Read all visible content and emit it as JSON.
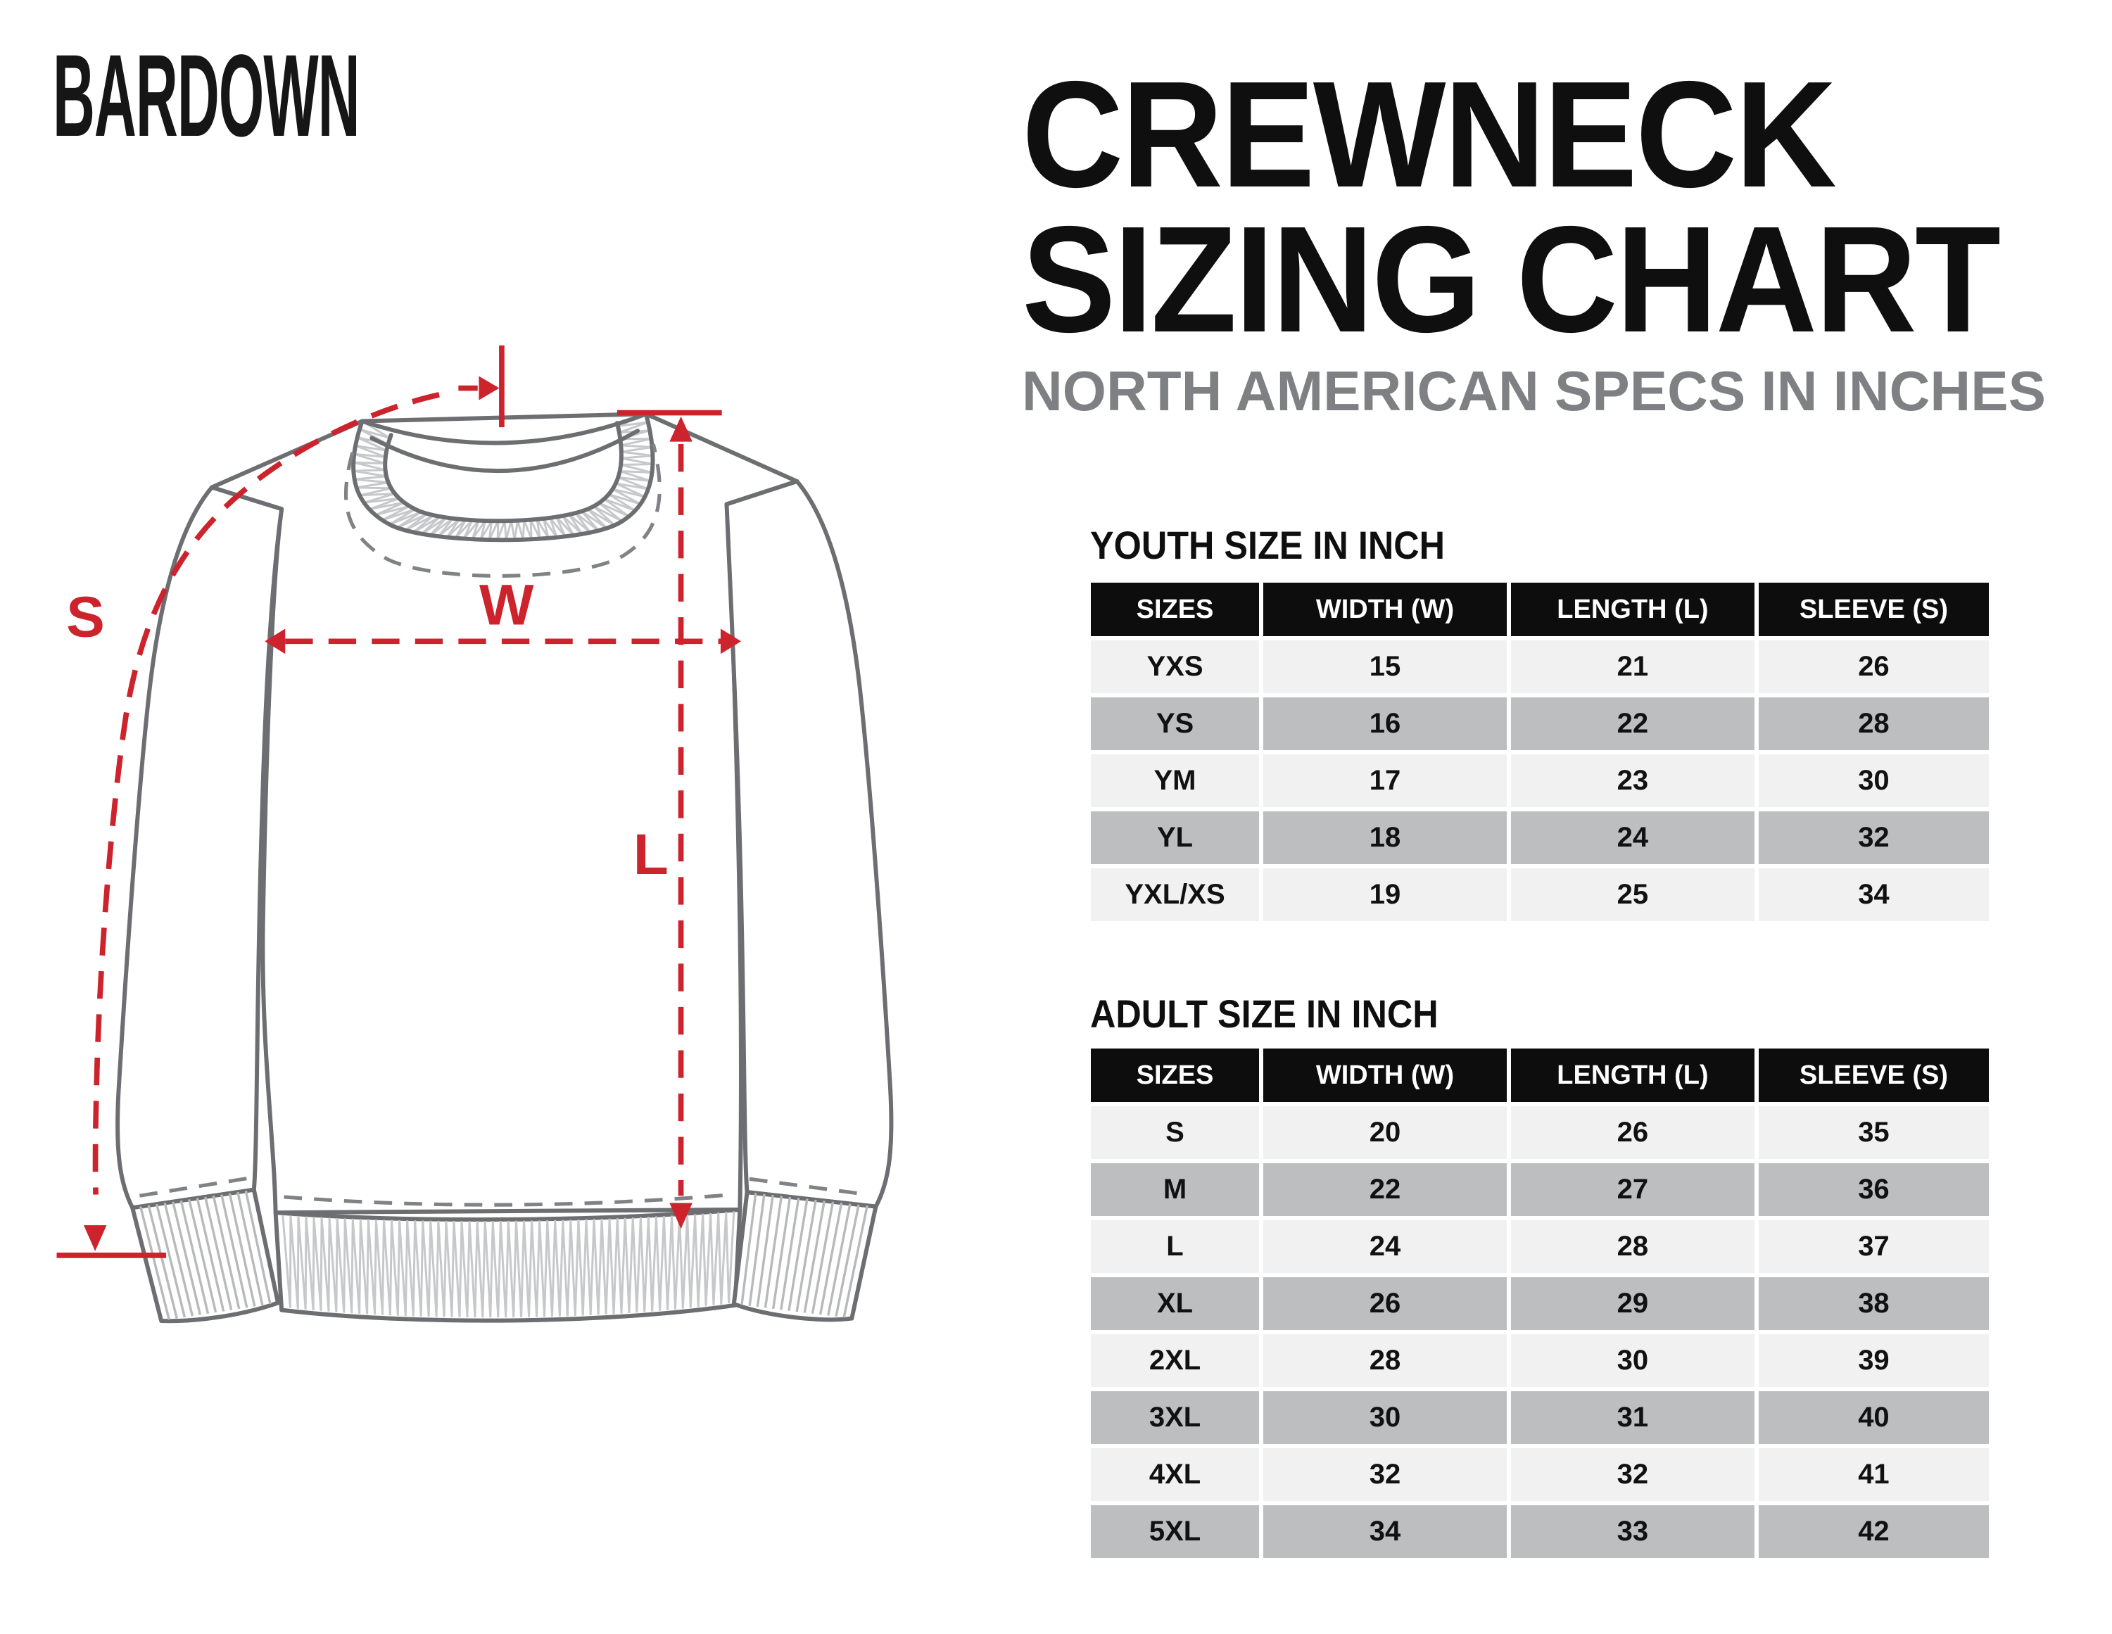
{
  "logo": "BARDOWN",
  "title": {
    "line1": "CREWNECK",
    "line2": "SIZING CHART",
    "subtitle": "NORTH AMERICAN SPECS IN INCHES"
  },
  "diagram": {
    "labels": {
      "sleeve": "S",
      "width": "W",
      "length": "L"
    }
  },
  "youth": {
    "heading": "YOUTH SIZE IN INCH",
    "columns": [
      "SIZES",
      "WIDTH (W)",
      "LENGTH (L)",
      "SLEEVE (S)"
    ],
    "rows": [
      [
        "YXS",
        "15",
        "21",
        "26"
      ],
      [
        "YS",
        "16",
        "22",
        "28"
      ],
      [
        "YM",
        "17",
        "23",
        "30"
      ],
      [
        "YL",
        "18",
        "24",
        "32"
      ],
      [
        "YXL/XS",
        "19",
        "25",
        "34"
      ]
    ]
  },
  "adult": {
    "heading": "ADULT SIZE IN INCH",
    "columns": [
      "SIZES",
      "WIDTH (W)",
      "LENGTH (L)",
      "SLEEVE (S)"
    ],
    "rows": [
      [
        "S",
        "20",
        "26",
        "35"
      ],
      [
        "M",
        "22",
        "27",
        "36"
      ],
      [
        "L",
        "24",
        "28",
        "37"
      ],
      [
        "XL",
        "26",
        "29",
        "38"
      ],
      [
        "2XL",
        "28",
        "30",
        "39"
      ],
      [
        "3XL",
        "30",
        "31",
        "40"
      ],
      [
        "4XL",
        "32",
        "32",
        "41"
      ],
      [
        "5XL",
        "34",
        "33",
        "42"
      ]
    ]
  },
  "colors": {
    "accent_red": "#cd232c",
    "line_gray": "#6d6e71",
    "hatch_gray": "#c7c8ca",
    "seam_gray": "#808285",
    "header_bg": "#0d0d0d",
    "row_light": "#f1f1f2",
    "row_dark": "#bcbec0",
    "subtitle_gray": "#7e8083",
    "text_black": "#111111"
  }
}
